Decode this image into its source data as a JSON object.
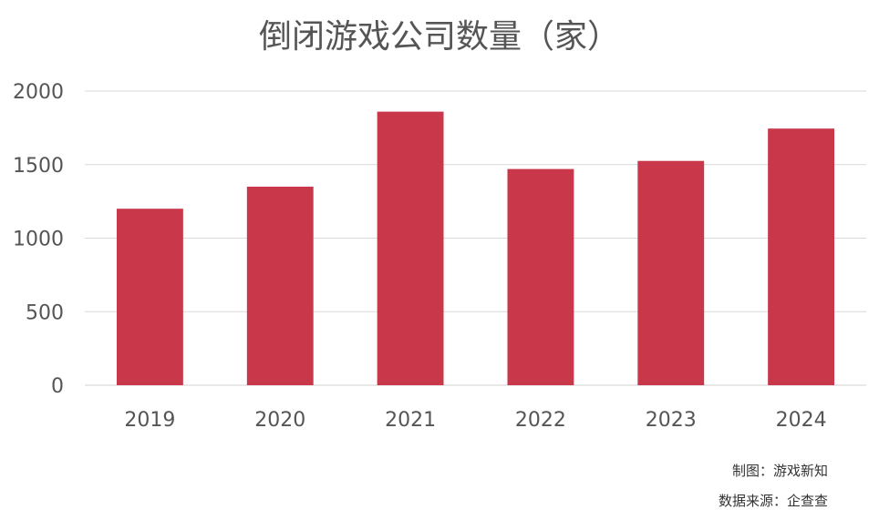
{
  "chart_data": {
    "type": "bar",
    "title": "倒闭游戏公司数量（家）",
    "categories": [
      "2019",
      "2020",
      "2021",
      "2022",
      "2023",
      "2024"
    ],
    "values": [
      1200,
      1350,
      1860,
      1470,
      1525,
      1745
    ],
    "ylim": [
      0,
      2000
    ],
    "yticks": [
      0,
      500,
      1000,
      1500,
      2000
    ],
    "grid": true,
    "bar_color": "#c8374a"
  },
  "footer": {
    "credit": "制图：游戏新知",
    "source": "数据来源：企查查"
  }
}
